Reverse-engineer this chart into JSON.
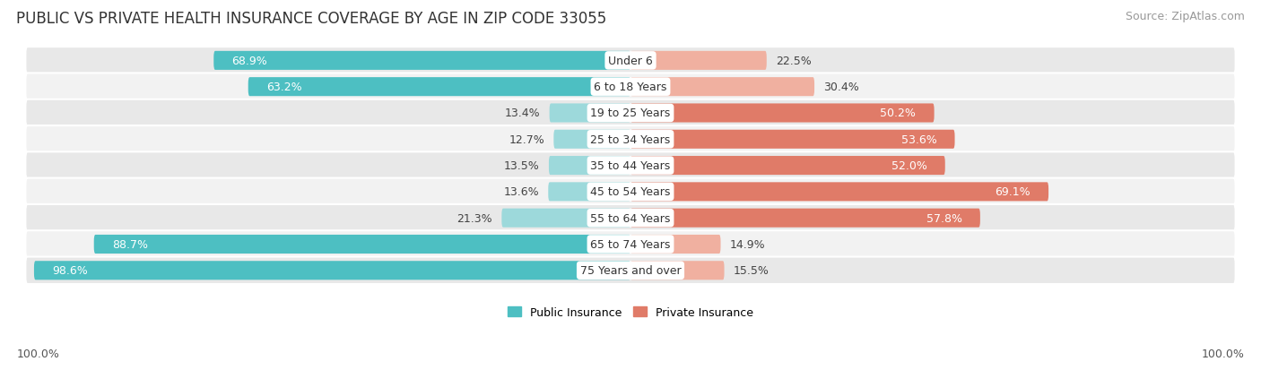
{
  "title": "PUBLIC VS PRIVATE HEALTH INSURANCE COVERAGE BY AGE IN ZIP CODE 33055",
  "source": "Source: ZipAtlas.com",
  "categories": [
    "Under 6",
    "6 to 18 Years",
    "19 to 25 Years",
    "25 to 34 Years",
    "35 to 44 Years",
    "45 to 54 Years",
    "55 to 64 Years",
    "65 to 74 Years",
    "75 Years and over"
  ],
  "public_values": [
    68.9,
    63.2,
    13.4,
    12.7,
    13.5,
    13.6,
    21.3,
    88.7,
    98.6
  ],
  "private_values": [
    22.5,
    30.4,
    50.2,
    53.6,
    52.0,
    69.1,
    57.8,
    14.9,
    15.5
  ],
  "public_color": "#4dbfc2",
  "private_color": "#e07b68",
  "public_color_light": "#9dd9db",
  "private_color_light": "#f0b0a0",
  "row_bg_even": "#e8e8e8",
  "row_bg_odd": "#f2f2f2",
  "title_fontsize": 12,
  "source_fontsize": 9,
  "label_fontsize": 9,
  "category_fontsize": 9,
  "legend_fontsize": 9,
  "axis_label_fontsize": 9,
  "footer_labels": [
    "100.0%",
    "100.0%"
  ]
}
